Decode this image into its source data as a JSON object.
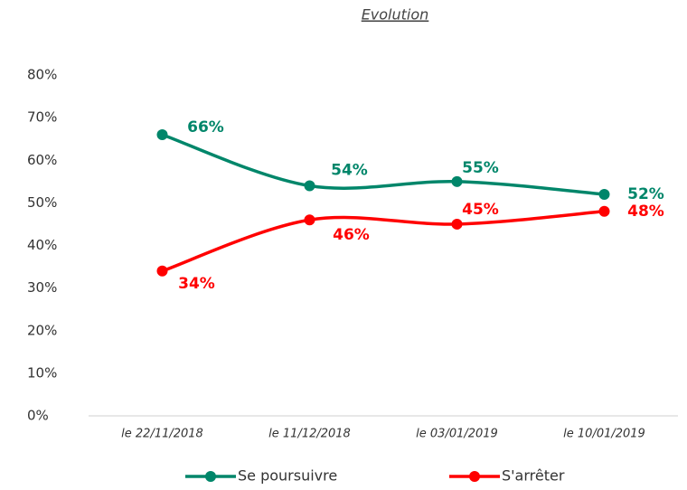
{
  "chart_data": {
    "type": "line",
    "title": "Evolution",
    "categories": [
      "le 22/11/2018",
      "le 11/12/2018",
      "le 03/01/2019",
      "le 10/01/2019"
    ],
    "series": [
      {
        "name": "Se poursuivre",
        "color": "#00866a",
        "values": [
          66,
          54,
          55,
          52
        ],
        "value_labels": [
          "66%",
          "54%",
          "55%",
          "52%"
        ]
      },
      {
        "name": "S'arrêter",
        "color": "#ff0000",
        "values": [
          34,
          46,
          45,
          48
        ],
        "value_labels": [
          "34%",
          "46%",
          "45%",
          "48%"
        ]
      }
    ],
    "ylim": [
      0,
      80
    ],
    "yticks": [
      {
        "value": 0,
        "label": "0%"
      },
      {
        "value": 10,
        "label": "10%"
      },
      {
        "value": 20,
        "label": "20%"
      },
      {
        "value": 30,
        "label": "30%"
      },
      {
        "value": 40,
        "label": "40%"
      },
      {
        "value": 50,
        "label": "50%"
      },
      {
        "value": 60,
        "label": "60%"
      },
      {
        "value": 70,
        "label": "70%"
      },
      {
        "value": 80,
        "label": "80%"
      }
    ],
    "grid": false,
    "legend": "bottom"
  }
}
